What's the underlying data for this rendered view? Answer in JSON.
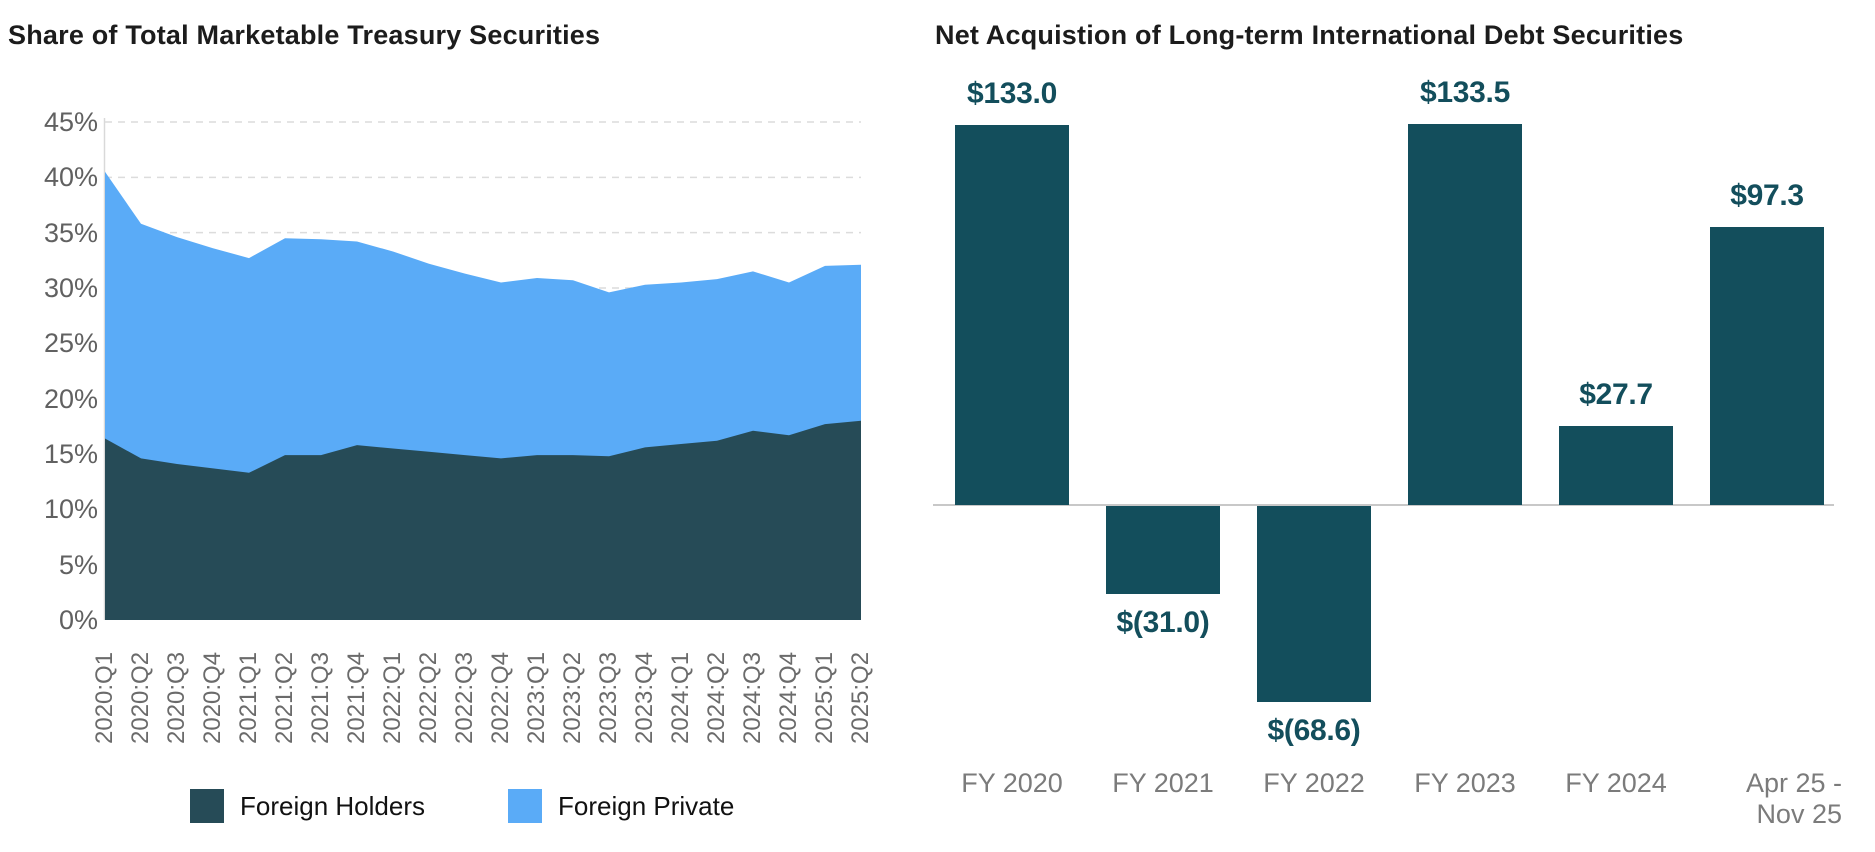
{
  "left_chart": {
    "title": "Share of Total Marketable Treasury Securities",
    "y_axis_labels": [
      "45%",
      "40%",
      "35%",
      "30%",
      "25%",
      "20%",
      "15%",
      "10%",
      "5%",
      "0%"
    ],
    "legend": [
      {
        "label": "Foreign Holders",
        "color": "#264B57"
      },
      {
        "label": "Foreign Private",
        "color": "#5AABF7"
      }
    ],
    "gridline_color": "#dcdcdc",
    "axis_line_color": "#d9d9d9"
  },
  "right_chart": {
    "title": "Net Acquistion of Long-term International Debt Securities",
    "bar_color": "#134E5C",
    "value_label_color": "#134E5C",
    "zero_line_color": "#c8c8c8",
    "x_label_lines": [
      [
        "FY 2020"
      ],
      [
        "FY 2021"
      ],
      [
        "FY 2022"
      ],
      [
        "FY 2023"
      ],
      [
        "FY 2024"
      ],
      [
        "Apr 25 -",
        "Nov 25"
      ]
    ]
  },
  "chart_data": [
    {
      "type": "area",
      "title": "Share of Total Marketable Treasury Securities",
      "stacked": true,
      "categories": [
        "2020:Q1",
        "2020:Q2",
        "2020:Q3",
        "2020:Q4",
        "2021:Q1",
        "2021:Q2",
        "2021:Q3",
        "2021:Q4",
        "2022:Q1",
        "2022:Q2",
        "2022:Q3",
        "2022:Q4",
        "2023:Q1",
        "2023:Q2",
        "2023:Q3",
        "2023:Q4",
        "2024:Q1",
        "2024:Q2",
        "2024:Q3",
        "2024:Q4",
        "2025:Q1",
        "2025:Q2"
      ],
      "series": [
        {
          "name": "Foreign Holders",
          "color": "#264B57",
          "values": [
            16.4,
            14.6,
            14.1,
            13.7,
            13.3,
            14.9,
            14.9,
            15.8,
            15.5,
            15.2,
            14.9,
            14.6,
            14.9,
            14.9,
            14.8,
            15.6,
            15.9,
            16.2,
            17.1,
            16.7,
            17.7,
            18.0
          ]
        },
        {
          "name": "Foreign Private",
          "color": "#5AABF7",
          "values": [
            24.1,
            21.2,
            20.5,
            19.9,
            19.4,
            19.6,
            19.5,
            18.4,
            17.8,
            17.0,
            16.4,
            15.9,
            16.0,
            15.8,
            14.8,
            14.7,
            14.6,
            14.6,
            14.4,
            13.8,
            14.3,
            14.1
          ]
        }
      ],
      "stacked_totals": [
        40.5,
        35.8,
        34.6,
        33.6,
        32.7,
        34.5,
        34.4,
        34.2,
        33.3,
        32.2,
        31.3,
        30.5,
        30.9,
        30.7,
        29.6,
        30.3,
        30.5,
        30.8,
        31.5,
        30.5,
        32.0,
        32.1
      ],
      "ylabel": "",
      "xlabel": "",
      "ylim": [
        0,
        45
      ],
      "y_tick_step": 5,
      "grid": "dashed-horizontal",
      "legend_position": "bottom"
    },
    {
      "type": "bar",
      "title": "Net Acquistion of Long-term International Debt Securities",
      "categories": [
        "FY 2020",
        "FY 2021",
        "FY 2022",
        "FY 2023",
        "FY 2024",
        "Apr 25 - Nov 25"
      ],
      "values": [
        133.0,
        -31.0,
        -68.6,
        133.5,
        27.7,
        97.3
      ],
      "data_labels": [
        "$133.0",
        "$(31.0)",
        "$(68.6)",
        "$133.5",
        "$27.7",
        "$97.3"
      ],
      "ylabel": "",
      "xlabel": "",
      "grid": "off",
      "baseline": 0
    }
  ]
}
